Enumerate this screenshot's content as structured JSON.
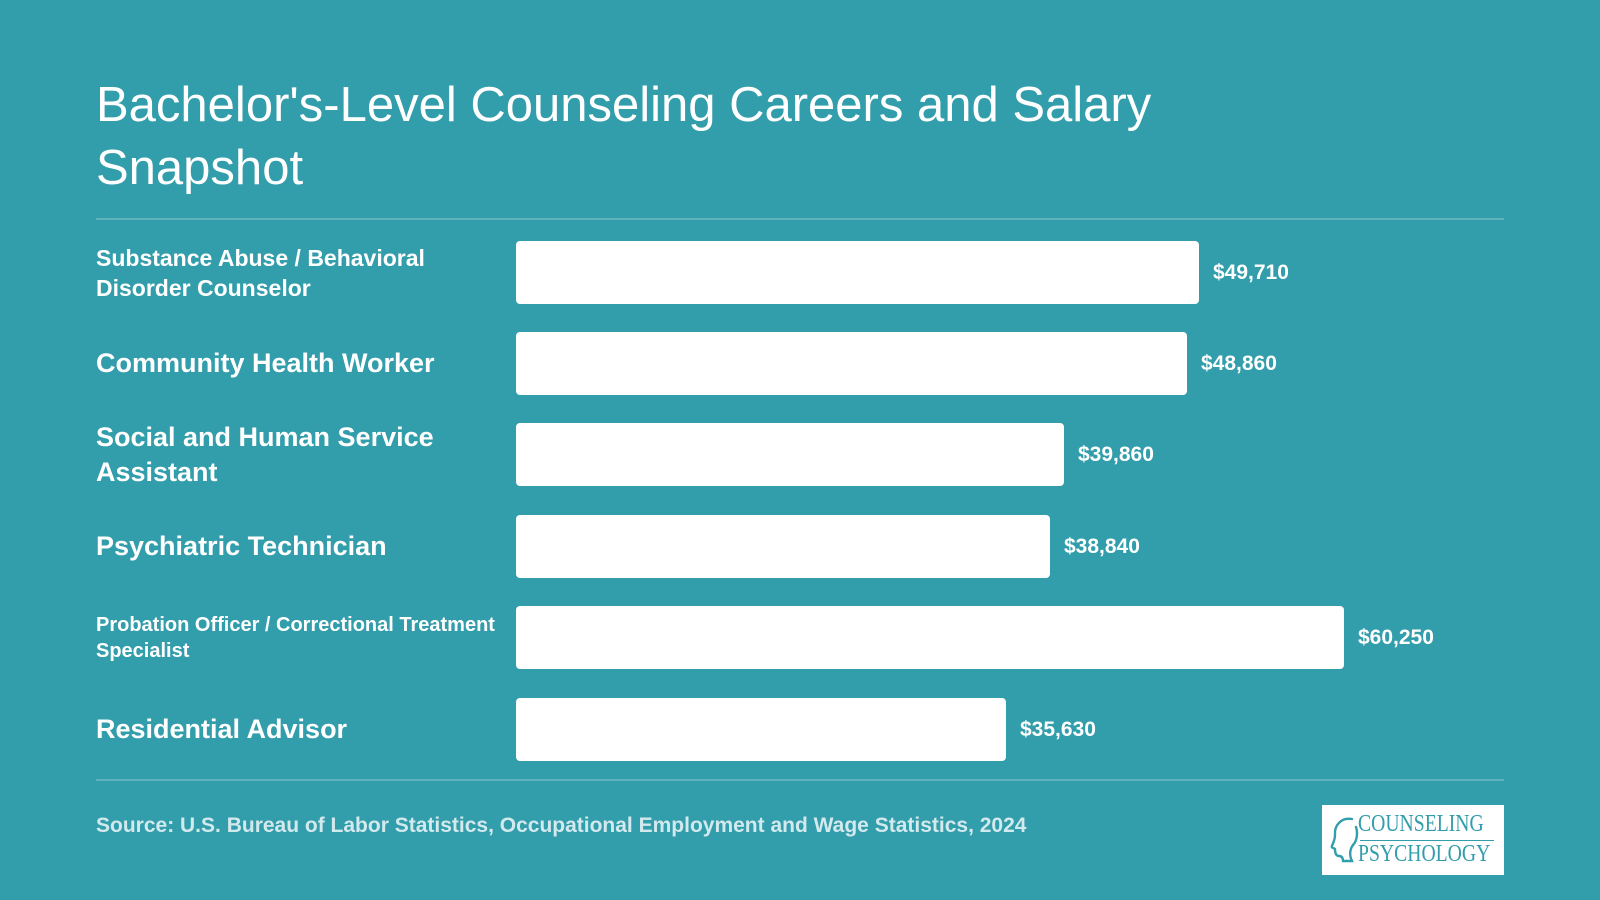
{
  "page": {
    "title": "Bachelor's-Level Counseling Careers and Salary Snapshot",
    "source": "Source: U.S. Bureau of Labor Statistics, Occupational Employment and Wage Statistics, 2024",
    "logo": {
      "line1": "COUNSELING",
      "line2": "PSYCHOLOGY"
    }
  },
  "colors": {
    "background": "#329dab",
    "bar": "#ffffff",
    "text": "#ffffff"
  },
  "chart_data": {
    "type": "bar",
    "orientation": "horizontal",
    "title": "Bachelor's-Level Counseling Careers and Salary Snapshot",
    "xlabel": "",
    "ylabel": "",
    "categories": [
      "Substance Abuse / Behavioral Disorder Counselor",
      "Community Health Worker",
      "Social and Human Service Assistant",
      "Psychiatric Technician",
      "Probation Officer / Correctional Treatment Specialist",
      "Residential Advisor"
    ],
    "values": [
      49710,
      48860,
      39860,
      38840,
      60250,
      35630
    ],
    "value_labels": [
      "$49,710",
      "$48,860",
      "$39,860",
      "$38,840",
      "$60,250",
      "$35,630"
    ],
    "xlim": [
      0,
      60250
    ],
    "grid": false,
    "legend": "none"
  }
}
